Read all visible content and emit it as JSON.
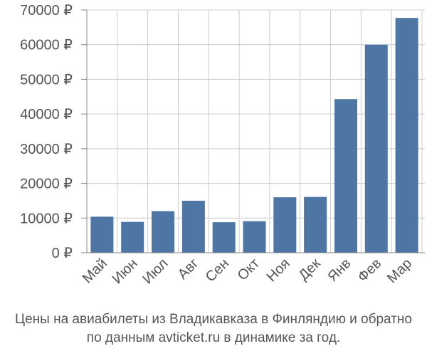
{
  "chart_data": {
    "type": "bar",
    "categories": [
      "Май",
      "Июн",
      "Июл",
      "Авг",
      "Сен",
      "Окт",
      "Ноя",
      "Дек",
      "Янв",
      "Фев",
      "Мар"
    ],
    "values": [
      10400,
      8900,
      12000,
      15000,
      8800,
      9100,
      16000,
      16100,
      44300,
      60000,
      67700
    ],
    "ylim": [
      0,
      70000
    ],
    "yticks": [
      0,
      10000,
      20000,
      30000,
      40000,
      50000,
      60000,
      70000
    ],
    "ytick_labels": [
      "0 ₽",
      "10000 ₽",
      "20000 ₽",
      "30000 ₽",
      "40000 ₽",
      "50000 ₽",
      "60000 ₽",
      "70000 ₽"
    ],
    "grid": true,
    "bar_color": "#4e76a5",
    "grid_color": "#cccccc",
    "axis_color": "#888888",
    "text_color": "#555555"
  },
  "caption": {
    "line1": "Цены на авиабилеты из Владикавказа в Финляндию и обратно",
    "line2": "по данным avticket.ru в динамике за год."
  }
}
